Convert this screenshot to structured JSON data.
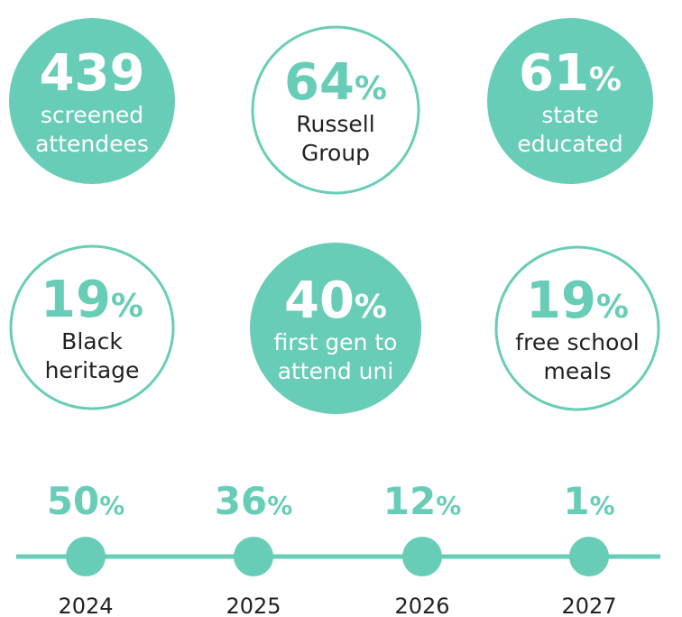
{
  "stats": [
    {
      "value": 439,
      "unit": "",
      "label": [
        "screened",
        "attendees"
      ],
      "filled": true
    },
    {
      "value": 64,
      "unit": "%",
      "label": [
        "Russell",
        "Group"
      ],
      "filled": false
    },
    {
      "value": 61,
      "unit": "%",
      "label": [
        "state",
        "educated"
      ],
      "filled": true
    },
    {
      "value": 19,
      "unit": "%",
      "label": [
        "Black",
        "heritage"
      ],
      "filled": false
    },
    {
      "value": 40,
      "unit": "%",
      "label": [
        "first gen to",
        "attend uni"
      ],
      "filled": true
    },
    {
      "value": 19,
      "unit": "%",
      "label": [
        "free school",
        "meals"
      ],
      "filled": false
    }
  ],
  "timeline": [
    {
      "value": 50,
      "unit": "%",
      "year": "2024"
    },
    {
      "value": 36,
      "unit": "%",
      "year": "2025"
    },
    {
      "value": 12,
      "unit": "%",
      "year": "2026"
    },
    {
      "value": 1,
      "unit": "%",
      "year": "2027"
    }
  ],
  "color": "#68cdb6"
}
